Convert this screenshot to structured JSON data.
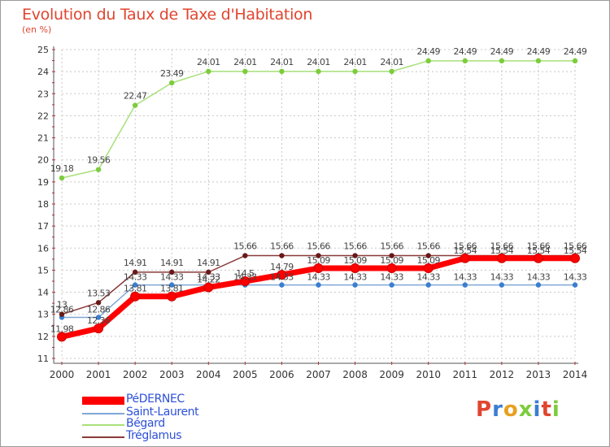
{
  "title": "Evolution du Taux de Taxe d'Habitation",
  "subtitle": "(en %)",
  "logo": "Proxiti",
  "colors": {
    "title": "#e0452f",
    "legend_text": "#2d50d8",
    "grid": "#c8c8c8",
    "axis_ticks": "#d8202a"
  },
  "chart_data": {
    "type": "line",
    "x": [
      "2000",
      "2001",
      "2002",
      "2003",
      "2004",
      "2005",
      "2006",
      "2007",
      "2008",
      "2009",
      "2010",
      "2011",
      "2012",
      "2013",
      "2014"
    ],
    "ylim": [
      11,
      25
    ],
    "yticks": [
      11,
      12,
      13,
      14,
      15,
      16,
      17,
      18,
      19,
      20,
      21,
      22,
      23,
      24,
      25
    ],
    "grid": true,
    "legend_position": "bottom-left",
    "series": [
      {
        "name": "PéDERNEC",
        "color": "#ff0000",
        "marker_color": "#ff0000",
        "width": 7,
        "values": [
          11.98,
          12.36,
          13.81,
          13.81,
          14.22,
          14.5,
          14.79,
          15.09,
          15.09,
          15.09,
          15.09,
          15.54,
          15.54,
          15.54,
          15.54
        ],
        "labels": [
          "11.98",
          "12.36",
          "13.81",
          "13.81",
          "14.22",
          "14.5",
          "14.79",
          "15.09",
          "15.09",
          "15.09",
          "15.09",
          "15.54",
          "15.54",
          "15.54",
          "15.54"
        ]
      },
      {
        "name": "Saint-Laurent",
        "color": "#7ea8d8",
        "marker_color": "#3a7ed0",
        "width": 1.5,
        "values": [
          12.86,
          12.86,
          14.33,
          14.33,
          14.33,
          14.33,
          14.33,
          14.33,
          14.33,
          14.33,
          14.33,
          14.33,
          14.33,
          14.33,
          14.33
        ],
        "labels": [
          "12.86",
          "12.86",
          "14.33",
          "14.33",
          "14.33",
          "14.33",
          "14.33",
          "14.33",
          "14.33",
          "14.33",
          "14.33",
          "14.33",
          "14.33",
          "14.33",
          "14.33"
        ]
      },
      {
        "name": "Bégard",
        "color": "#a8e07a",
        "marker_color": "#7ccc3c",
        "width": 1.5,
        "values": [
          19.18,
          19.56,
          22.47,
          23.49,
          24.01,
          24.01,
          24.01,
          24.01,
          24.01,
          24.01,
          24.49,
          24.49,
          24.49,
          24.49,
          24.49
        ],
        "labels": [
          "19.18",
          "19.56",
          "22.47",
          "23.49",
          "24.01",
          "24.01",
          "24.01",
          "24.01",
          "24.01",
          "24.01",
          "24.49",
          "24.49",
          "24.49",
          "24.49",
          "24.49"
        ]
      },
      {
        "name": "Tréglamus",
        "color": "#8a3a3a",
        "marker_color": "#6a1818",
        "width": 1.5,
        "values": [
          13,
          13.53,
          14.91,
          14.91,
          14.91,
          15.66,
          15.66,
          15.66,
          15.66,
          15.66,
          15.66,
          15.66,
          15.66,
          15.66,
          15.66
        ],
        "labels": [
          "13",
          "13.53",
          "14.91",
          "14.91",
          "14.91",
          "15.66",
          "15.66",
          "15.66",
          "15.66",
          "15.66",
          "15.66",
          "15.66",
          "15.66",
          "15.66",
          "15.66"
        ]
      }
    ]
  }
}
